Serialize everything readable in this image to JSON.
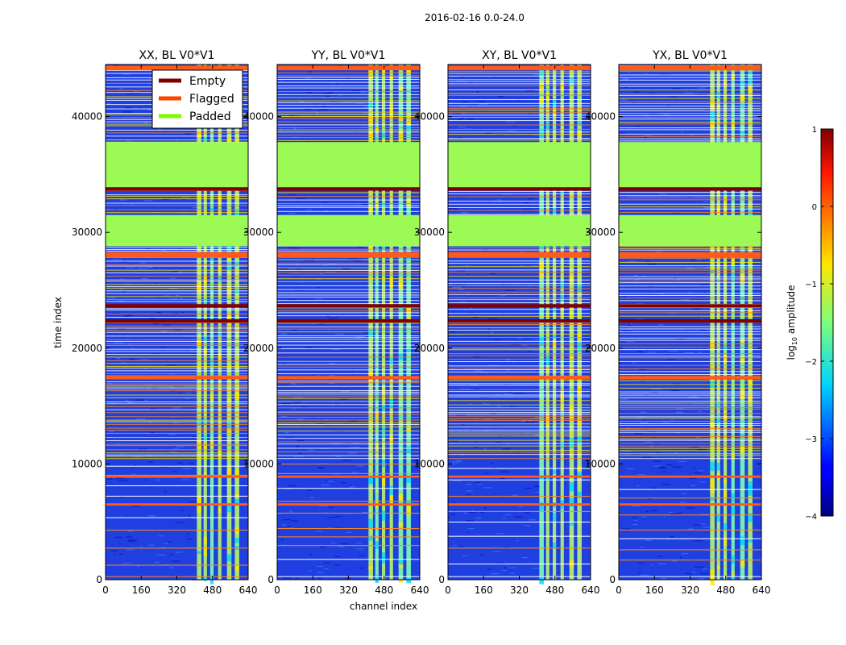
{
  "chart_data": {
    "type": "heatmap",
    "title": "2016-02-16 0.0-24.0",
    "xlabel": "channel index",
    "ylabel": "time index",
    "xlim": [
      0,
      640
    ],
    "ylim": [
      0,
      44500
    ],
    "x_ticks": [
      "0",
      "160",
      "320",
      "480",
      "640"
    ],
    "x_tick_values": [
      0,
      160,
      320,
      480,
      640
    ],
    "y_ticks": [
      "0",
      "10000",
      "20000",
      "30000",
      "40000"
    ],
    "y_tick_values": [
      0,
      10000,
      20000,
      30000,
      40000
    ],
    "panels": [
      {
        "title": "XX, BL V0*V1"
      },
      {
        "title": "YY, BL V0*V1"
      },
      {
        "title": "XY, BL V0*V1"
      },
      {
        "title": "YX, BL V0*V1"
      }
    ],
    "legend": {
      "placement": "upper-right of first panel",
      "entries": [
        {
          "label": "Empty",
          "color": "#800000"
        },
        {
          "label": "Flagged",
          "color": "#ff4500"
        },
        {
          "label": "Padded",
          "color": "#7cfc00"
        }
      ]
    },
    "colorbar": {
      "label": "log$_{10}$ amplitude",
      "label_main": "log",
      "label_sub": "10",
      "label_rest": " amplitude",
      "range": [
        -4,
        1
      ],
      "ticks": [
        "1",
        "0",
        "−1",
        "−2",
        "−3",
        "−4"
      ],
      "tick_values": [
        1,
        0,
        -1,
        -2,
        -3,
        -4
      ]
    },
    "padded_time_ranges": [
      [
        28800,
        31500
      ],
      [
        33700,
        37800
      ]
    ],
    "empty_time_ranges": [
      [
        33600,
        33900
      ],
      [
        23500,
        23800
      ],
      [
        22200,
        22500
      ]
    ],
    "flagged_time_ranges": [
      [
        44000,
        44400
      ],
      [
        27800,
        28300
      ],
      [
        17300,
        17600
      ],
      [
        8800,
        9000
      ],
      [
        6400,
        6600
      ]
    ],
    "bright_channel_bands": [
      [
        410,
        430
      ],
      [
        440,
        455
      ],
      [
        470,
        485
      ],
      [
        505,
        520
      ],
      [
        545,
        565
      ],
      [
        580,
        600
      ]
    ],
    "colors": {
      "background_low": "#1f3fe0",
      "padded": "#9cfa55",
      "empty": "#800000",
      "flagged": "#ff5a1a"
    }
  }
}
